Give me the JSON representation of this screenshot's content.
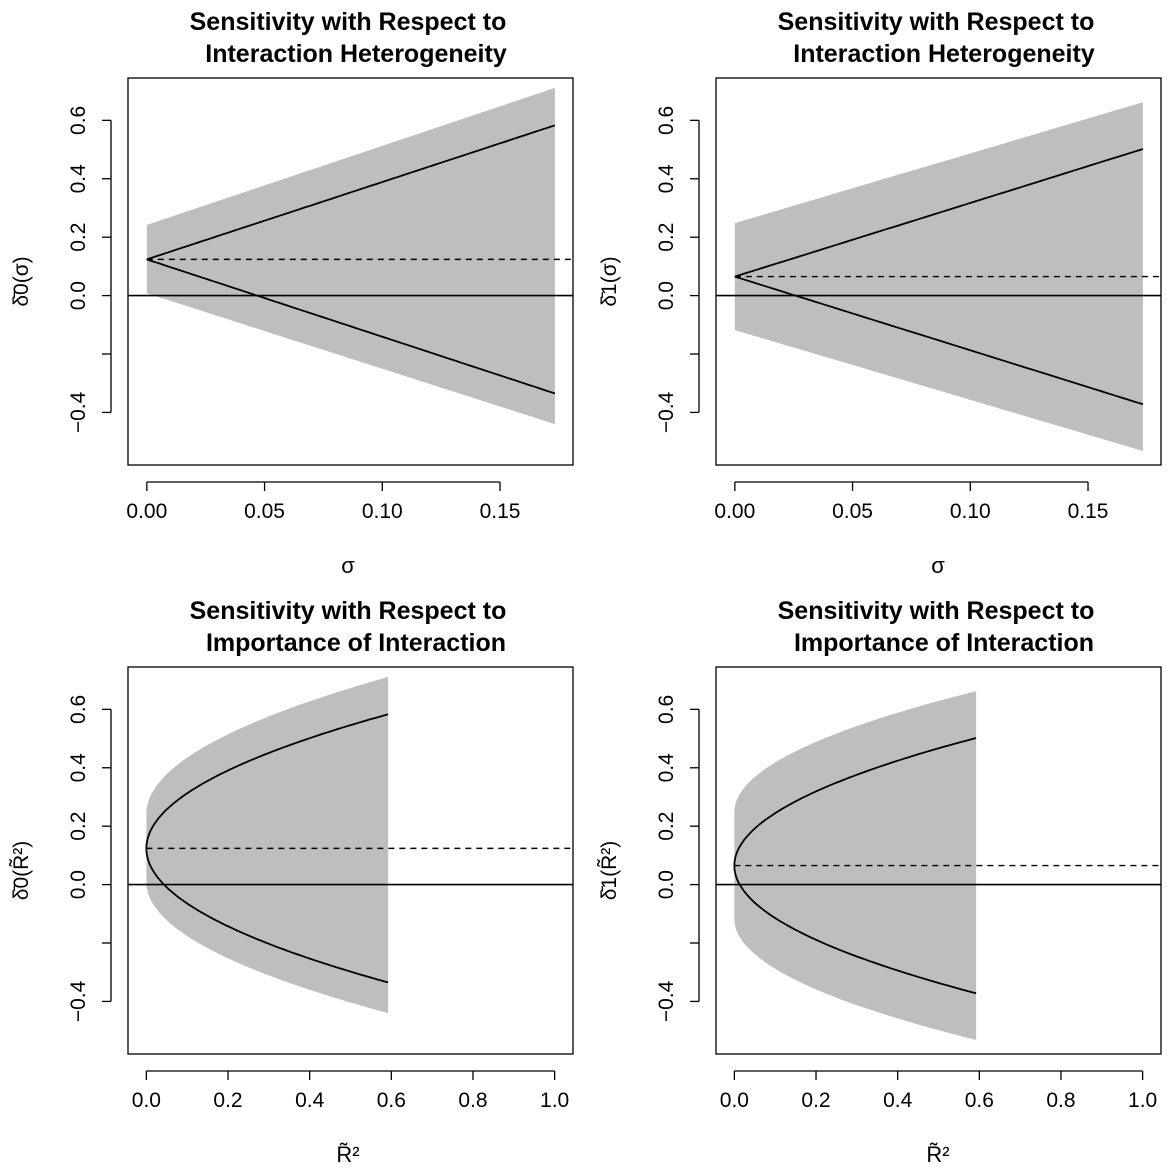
{
  "chart_data": [
    {
      "type": "line",
      "title_line1": "Sensitivity with Respect to",
      "title_line2": "Interaction Heterogeneity",
      "ylabel": "δ̄0(σ)",
      "xlabel": "σ",
      "xlim": [
        -0.008,
        0.181
      ],
      "ylim": [
        -0.58,
        0.745
      ],
      "x_ticks": [
        0.0,
        0.05,
        0.1,
        0.15
      ],
      "x_tick_labels": [
        "0.00",
        "0.05",
        "0.10",
        "0.15"
      ],
      "y_ticks": [
        -0.4,
        -0.2,
        0.0,
        0.2,
        0.4,
        0.6
      ],
      "y_tick_labels": [
        "−0.4",
        "",
        "0.0",
        "0.2",
        "0.4",
        "0.6"
      ],
      "x_kind": "sigma",
      "x_max": 0.1733,
      "point_estimate": 0.124,
      "ci_at_zero": [
        0.008,
        0.242
      ],
      "upper_end": 0.583,
      "lower_end": -0.335,
      "ci_upper_end": 0.711,
      "ci_lower_end": -0.44,
      "zero_line": 0,
      "series": [
        {
          "style": "solid",
          "values_at_end": [
            0.583,
            -0.335
          ]
        },
        {
          "style": "dashed",
          "value": 0.124
        },
        {
          "style": "band",
          "color": "#bebebe"
        }
      ]
    },
    {
      "type": "line",
      "title_line1": "Sensitivity with Respect to",
      "title_line2": "Interaction Heterogeneity",
      "ylabel": "δ̄1(σ)",
      "xlabel": "σ",
      "xlim": [
        -0.008,
        0.181
      ],
      "ylim": [
        -0.58,
        0.745
      ],
      "x_ticks": [
        0.0,
        0.05,
        0.1,
        0.15
      ],
      "x_tick_labels": [
        "0.00",
        "0.05",
        "0.10",
        "0.15"
      ],
      "y_ticks": [
        -0.4,
        -0.2,
        0.0,
        0.2,
        0.4,
        0.6
      ],
      "y_tick_labels": [
        "−0.4",
        "",
        "0.0",
        "0.2",
        "0.4",
        "0.6"
      ],
      "x_kind": "sigma",
      "x_max": 0.1733,
      "point_estimate": 0.065,
      "ci_at_zero": [
        -0.118,
        0.248
      ],
      "upper_end": 0.502,
      "lower_end": -0.372,
      "ci_upper_end": 0.662,
      "ci_lower_end": -0.532,
      "zero_line": 0,
      "series": [
        {
          "style": "solid",
          "values_at_end": [
            0.502,
            -0.372
          ]
        },
        {
          "style": "dashed",
          "value": 0.065
        },
        {
          "style": "band",
          "color": "#bebebe"
        }
      ]
    },
    {
      "type": "line",
      "title_line1": "Sensitivity with Respect to",
      "title_line2": "Importance of Interaction",
      "ylabel": "δ̄0(R̃²)",
      "xlabel": "R̃²",
      "xlim": [
        -0.045,
        1.045
      ],
      "ylim": [
        -0.58,
        0.745
      ],
      "x_ticks": [
        0.0,
        0.2,
        0.4,
        0.6,
        0.8,
        1.0
      ],
      "x_tick_labels": [
        "0.0",
        "0.2",
        "0.4",
        "0.6",
        "0.8",
        "1.0"
      ],
      "y_ticks": [
        -0.4,
        -0.2,
        0.0,
        0.2,
        0.4,
        0.6
      ],
      "y_tick_labels": [
        "−0.4",
        "",
        "0.0",
        "0.2",
        "0.4",
        "0.6"
      ],
      "x_kind": "r2",
      "x_max": 0.592,
      "point_estimate": 0.124,
      "ci_at_zero": [
        0.008,
        0.242
      ],
      "upper_end": 0.583,
      "lower_end": -0.335,
      "ci_upper_end": 0.711,
      "ci_lower_end": -0.44,
      "zero_line": 0,
      "series": [
        {
          "style": "solid",
          "values_at_end": [
            0.583,
            -0.335
          ]
        },
        {
          "style": "dashed",
          "value": 0.124
        },
        {
          "style": "band",
          "color": "#bebebe"
        }
      ]
    },
    {
      "type": "line",
      "title_line1": "Sensitivity with Respect to",
      "title_line2": "Importance of Interaction",
      "ylabel": "δ̄1(R̃²)",
      "xlabel": "R̃²",
      "xlim": [
        -0.045,
        1.045
      ],
      "ylim": [
        -0.58,
        0.745
      ],
      "x_ticks": [
        0.0,
        0.2,
        0.4,
        0.6,
        0.8,
        1.0
      ],
      "x_tick_labels": [
        "0.0",
        "0.2",
        "0.4",
        "0.6",
        "0.8",
        "1.0"
      ],
      "y_ticks": [
        -0.4,
        -0.2,
        0.0,
        0.2,
        0.4,
        0.6
      ],
      "y_tick_labels": [
        "−0.4",
        "",
        "0.0",
        "0.2",
        "0.4",
        "0.6"
      ],
      "x_kind": "r2",
      "x_max": 0.592,
      "point_estimate": 0.065,
      "ci_at_zero": [
        -0.118,
        0.248
      ],
      "upper_end": 0.502,
      "lower_end": -0.372,
      "ci_upper_end": 0.662,
      "ci_lower_end": -0.532,
      "zero_line": 0,
      "series": [
        {
          "style": "solid",
          "values_at_end": [
            0.502,
            -0.372
          ]
        },
        {
          "style": "dashed",
          "value": 0.065
        },
        {
          "style": "band",
          "color": "#bebebe"
        }
      ]
    }
  ]
}
